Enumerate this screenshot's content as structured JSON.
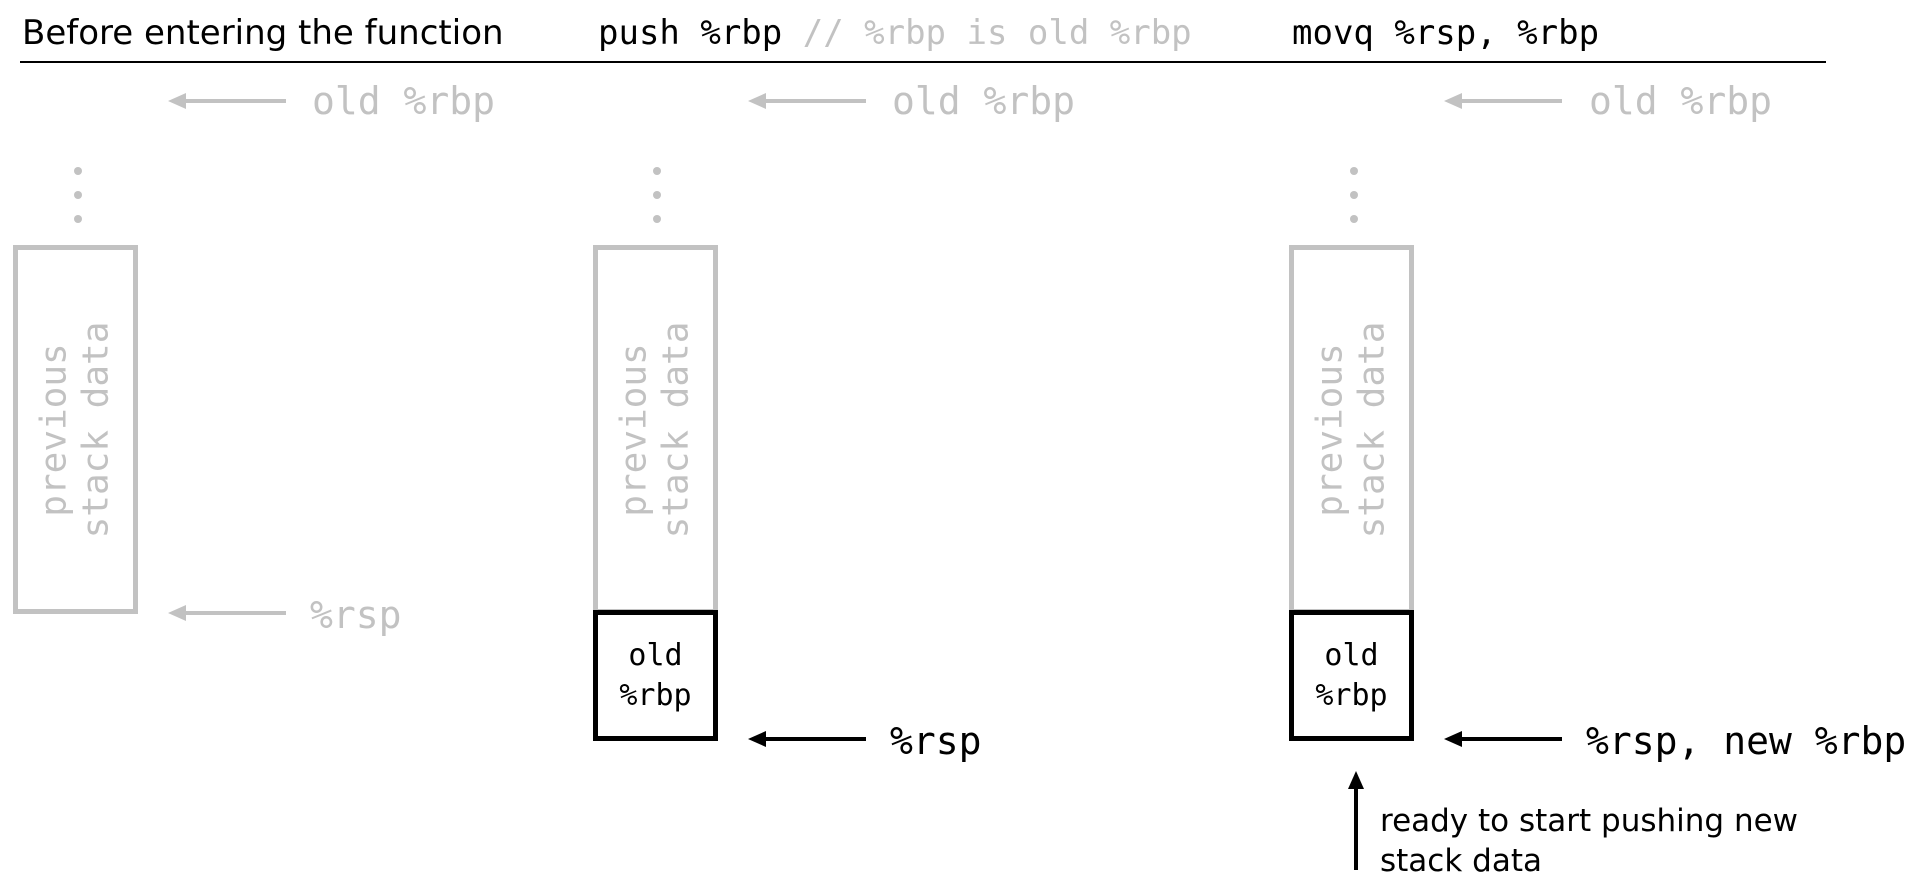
{
  "header": {
    "col1_title": "Before entering the function",
    "col2_code": "push %rbp",
    "col2_comment": "// %rbp is old %rbp",
    "col3_code": "movq %rsp, %rbp"
  },
  "panels": [
    {
      "top_label": "old %rbp",
      "box_label_line1": "previous",
      "box_label_line2": "stack data",
      "pointer_label": "%rsp"
    },
    {
      "top_label": "old %rbp",
      "box_label_line1": "previous",
      "box_label_line2": "stack data",
      "pushed_line1": "old",
      "pushed_line2": "%rbp",
      "pointer_label": "%rsp"
    },
    {
      "top_label": "old %rbp",
      "box_label_line1": "previous",
      "box_label_line2": "stack data",
      "pushed_line1": "old",
      "pushed_line2": "%rbp",
      "pointer_label": "%rsp, new %rbp",
      "note_line1": "ready to start pushing new",
      "note_line2": "stack data"
    }
  ],
  "colors": {
    "active": "#000000",
    "inactive": "#c2c2c2"
  }
}
